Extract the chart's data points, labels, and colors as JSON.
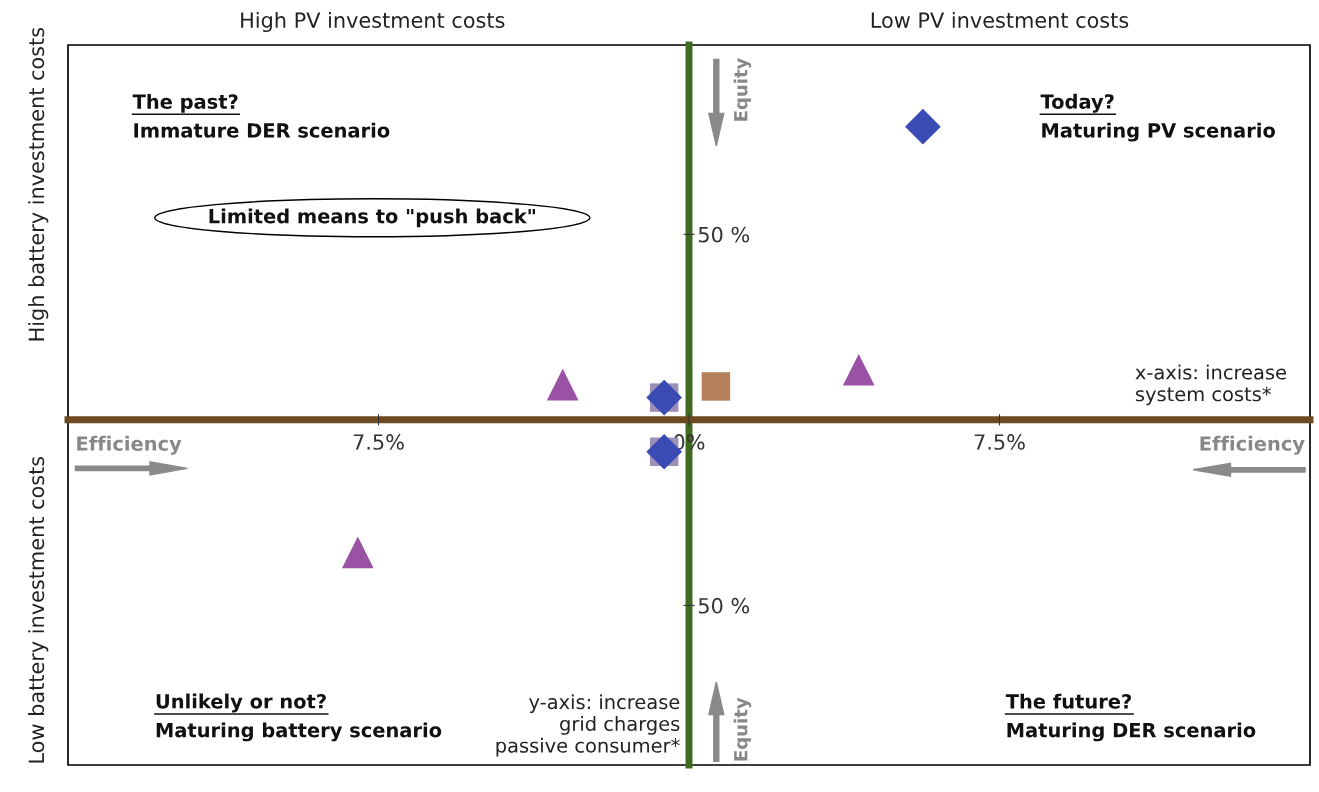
{
  "chart_data": {
    "type": "scatter",
    "xlim": [
      -15,
      15
    ],
    "ylim": [
      -93,
      101
    ],
    "xticks": [
      {
        "value": -7.5,
        "label": "7.5%"
      },
      {
        "value": 0,
        "label": "0%"
      },
      {
        "value": 7.5,
        "label": "7.5%"
      }
    ],
    "yticks": [
      {
        "value": -50,
        "label": "50 %"
      },
      {
        "value": 50,
        "label": "50 %"
      }
    ],
    "grid": false,
    "series": [
      {
        "marker": "square",
        "color": "#9c8fb8",
        "x": [
          -0.6,
          -0.6
        ],
        "values": [
          6,
          -8.6
        ]
      },
      {
        "marker": "square",
        "color": "#b5805a",
        "x": [
          0.65
        ],
        "values": [
          9
        ]
      },
      {
        "marker": "diamond",
        "color": "#3a4cb4",
        "x": [
          5.65,
          -0.6,
          -0.6
        ],
        "values": [
          79,
          6,
          -8.6
        ]
      },
      {
        "marker": "triangle",
        "color": "#9a52a4",
        "x": [
          4.1,
          -3.05,
          -8.0
        ],
        "values": [
          13.5,
          9.5,
          -35.7
        ]
      }
    ],
    "annotations": [
      "High PV investment costs",
      "Low PV investment costs",
      "High battery investment costs",
      "Low battery investment costs",
      "The past?",
      "Immature DER scenario",
      "Today?",
      "Maturing PV scenario",
      "Unlikely or not?",
      "Maturing battery scenario",
      "The future?",
      "Maturing DER scenario",
      "Limited means to \"push back\"",
      "Efficiency",
      "Efficiency",
      "Equity",
      "Equity",
      "x-axis: increase\nsystem costs*",
      "y-axis: increase\ngrid charges\npassive consumer*"
    ]
  }
}
